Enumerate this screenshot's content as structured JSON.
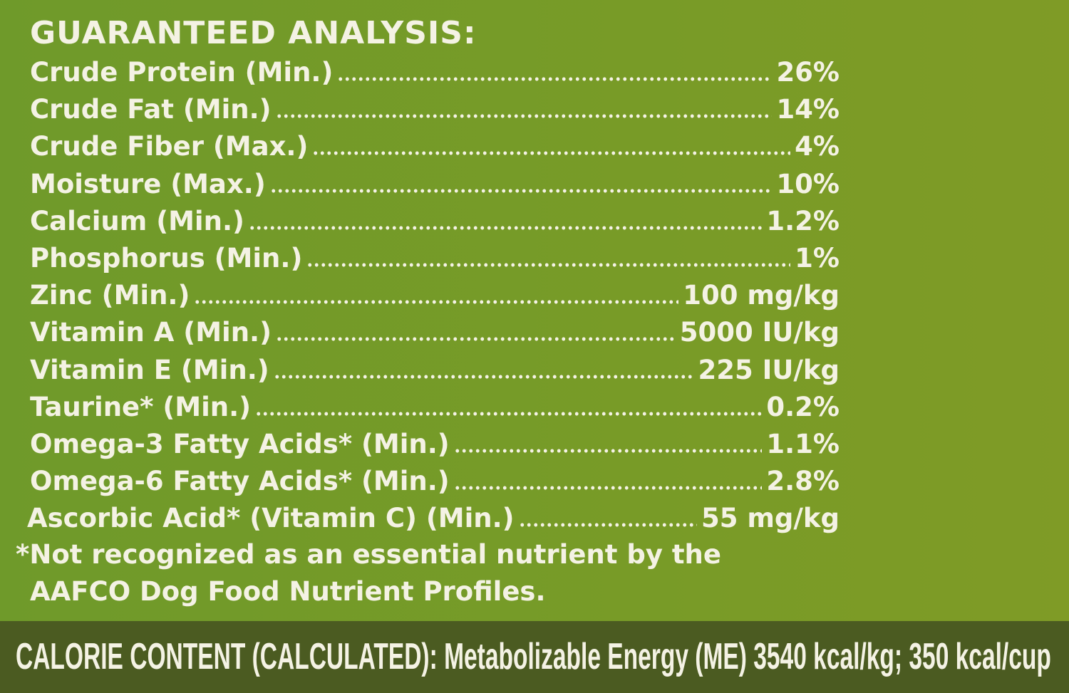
{
  "header": {
    "title": "GUARANTEED ANALYSIS:"
  },
  "rows": [
    {
      "label": "Crude Protein (Min.)",
      "value": "26%"
    },
    {
      "label": "Crude Fat (Min.)",
      "value": "14%"
    },
    {
      "label": "Crude Fiber (Max.)",
      "value": "4%"
    },
    {
      "label": "Moisture (Max.)",
      "value": "10%"
    },
    {
      "label": "Calcium (Min.)",
      "value": "1.2%"
    },
    {
      "label": "Phosphorus (Min.)",
      "value": "1%"
    },
    {
      "label": "Zinc (Min.)",
      "value": "100 mg/kg"
    },
    {
      "label": "Vitamin A (Min.)",
      "value": "5000 IU/kg"
    },
    {
      "label": "Vitamin E (Min.)",
      "value": "225 IU/kg"
    },
    {
      "label": "Taurine* (Min.)",
      "value": "0.2%"
    },
    {
      "label": "Omega-3 Fatty Acids* (Min.)",
      "value": "1.1%"
    },
    {
      "label": "Omega-6 Fatty Acids* (Min.)",
      "value": "2.8%"
    },
    {
      "label": "Ascorbic Acid* (Vitamin C) (Min.)",
      "value": "55 mg/kg"
    }
  ],
  "footnote": [
    "*Not recognized as an essential nutrient by the",
    "AAFCO Dog Food Nutrient Profiles."
  ],
  "calorie": {
    "label": "CALORIE CONTENT (CALCULATED):",
    "text": "Metabolizable Energy (ME) 3540 kcal/kg; 350 kcal/cup"
  }
}
